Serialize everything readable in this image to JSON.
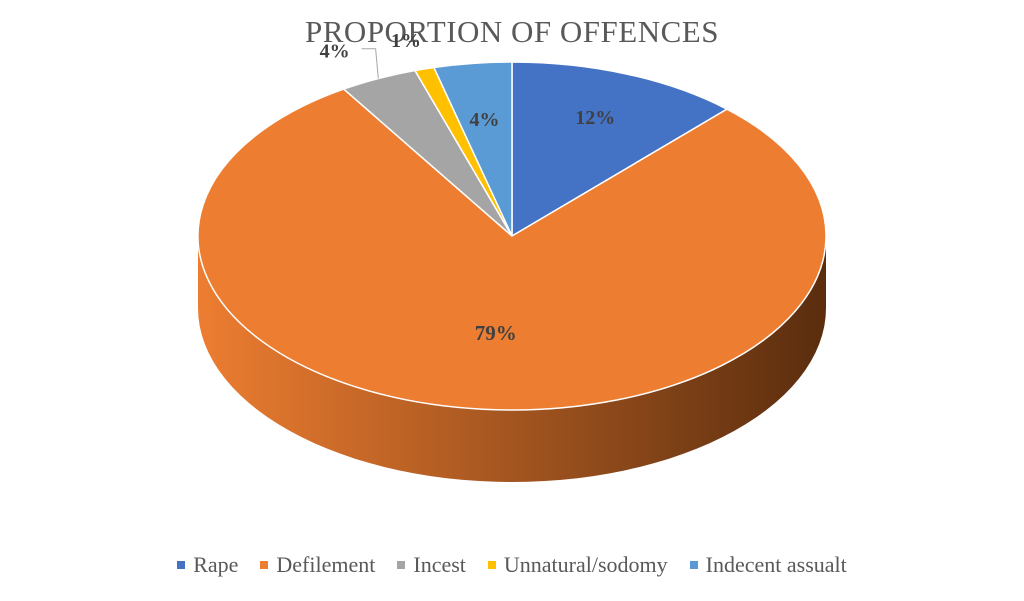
{
  "chart_data": {
    "type": "pie",
    "title": "PROPORTION OF OFFENCES",
    "style": "3d",
    "legend_position": "bottom",
    "categories": [
      "Rape",
      "Defilement",
      "Incest",
      "Unnatural/sodomy",
      "Indecent assualt"
    ],
    "values": [
      12,
      79,
      4,
      1,
      4
    ],
    "data_labels": [
      "12%",
      "79%",
      "4%",
      "1%",
      "4%"
    ],
    "colors": [
      "#4472C4",
      "#ED7D31",
      "#A5A5A5",
      "#FFC000",
      "#5B9BD5"
    ],
    "side_colors": [
      "#2F5597",
      "#B85E1E",
      "#7F7F7F",
      "#BF9000",
      "#3B78B0"
    ]
  }
}
